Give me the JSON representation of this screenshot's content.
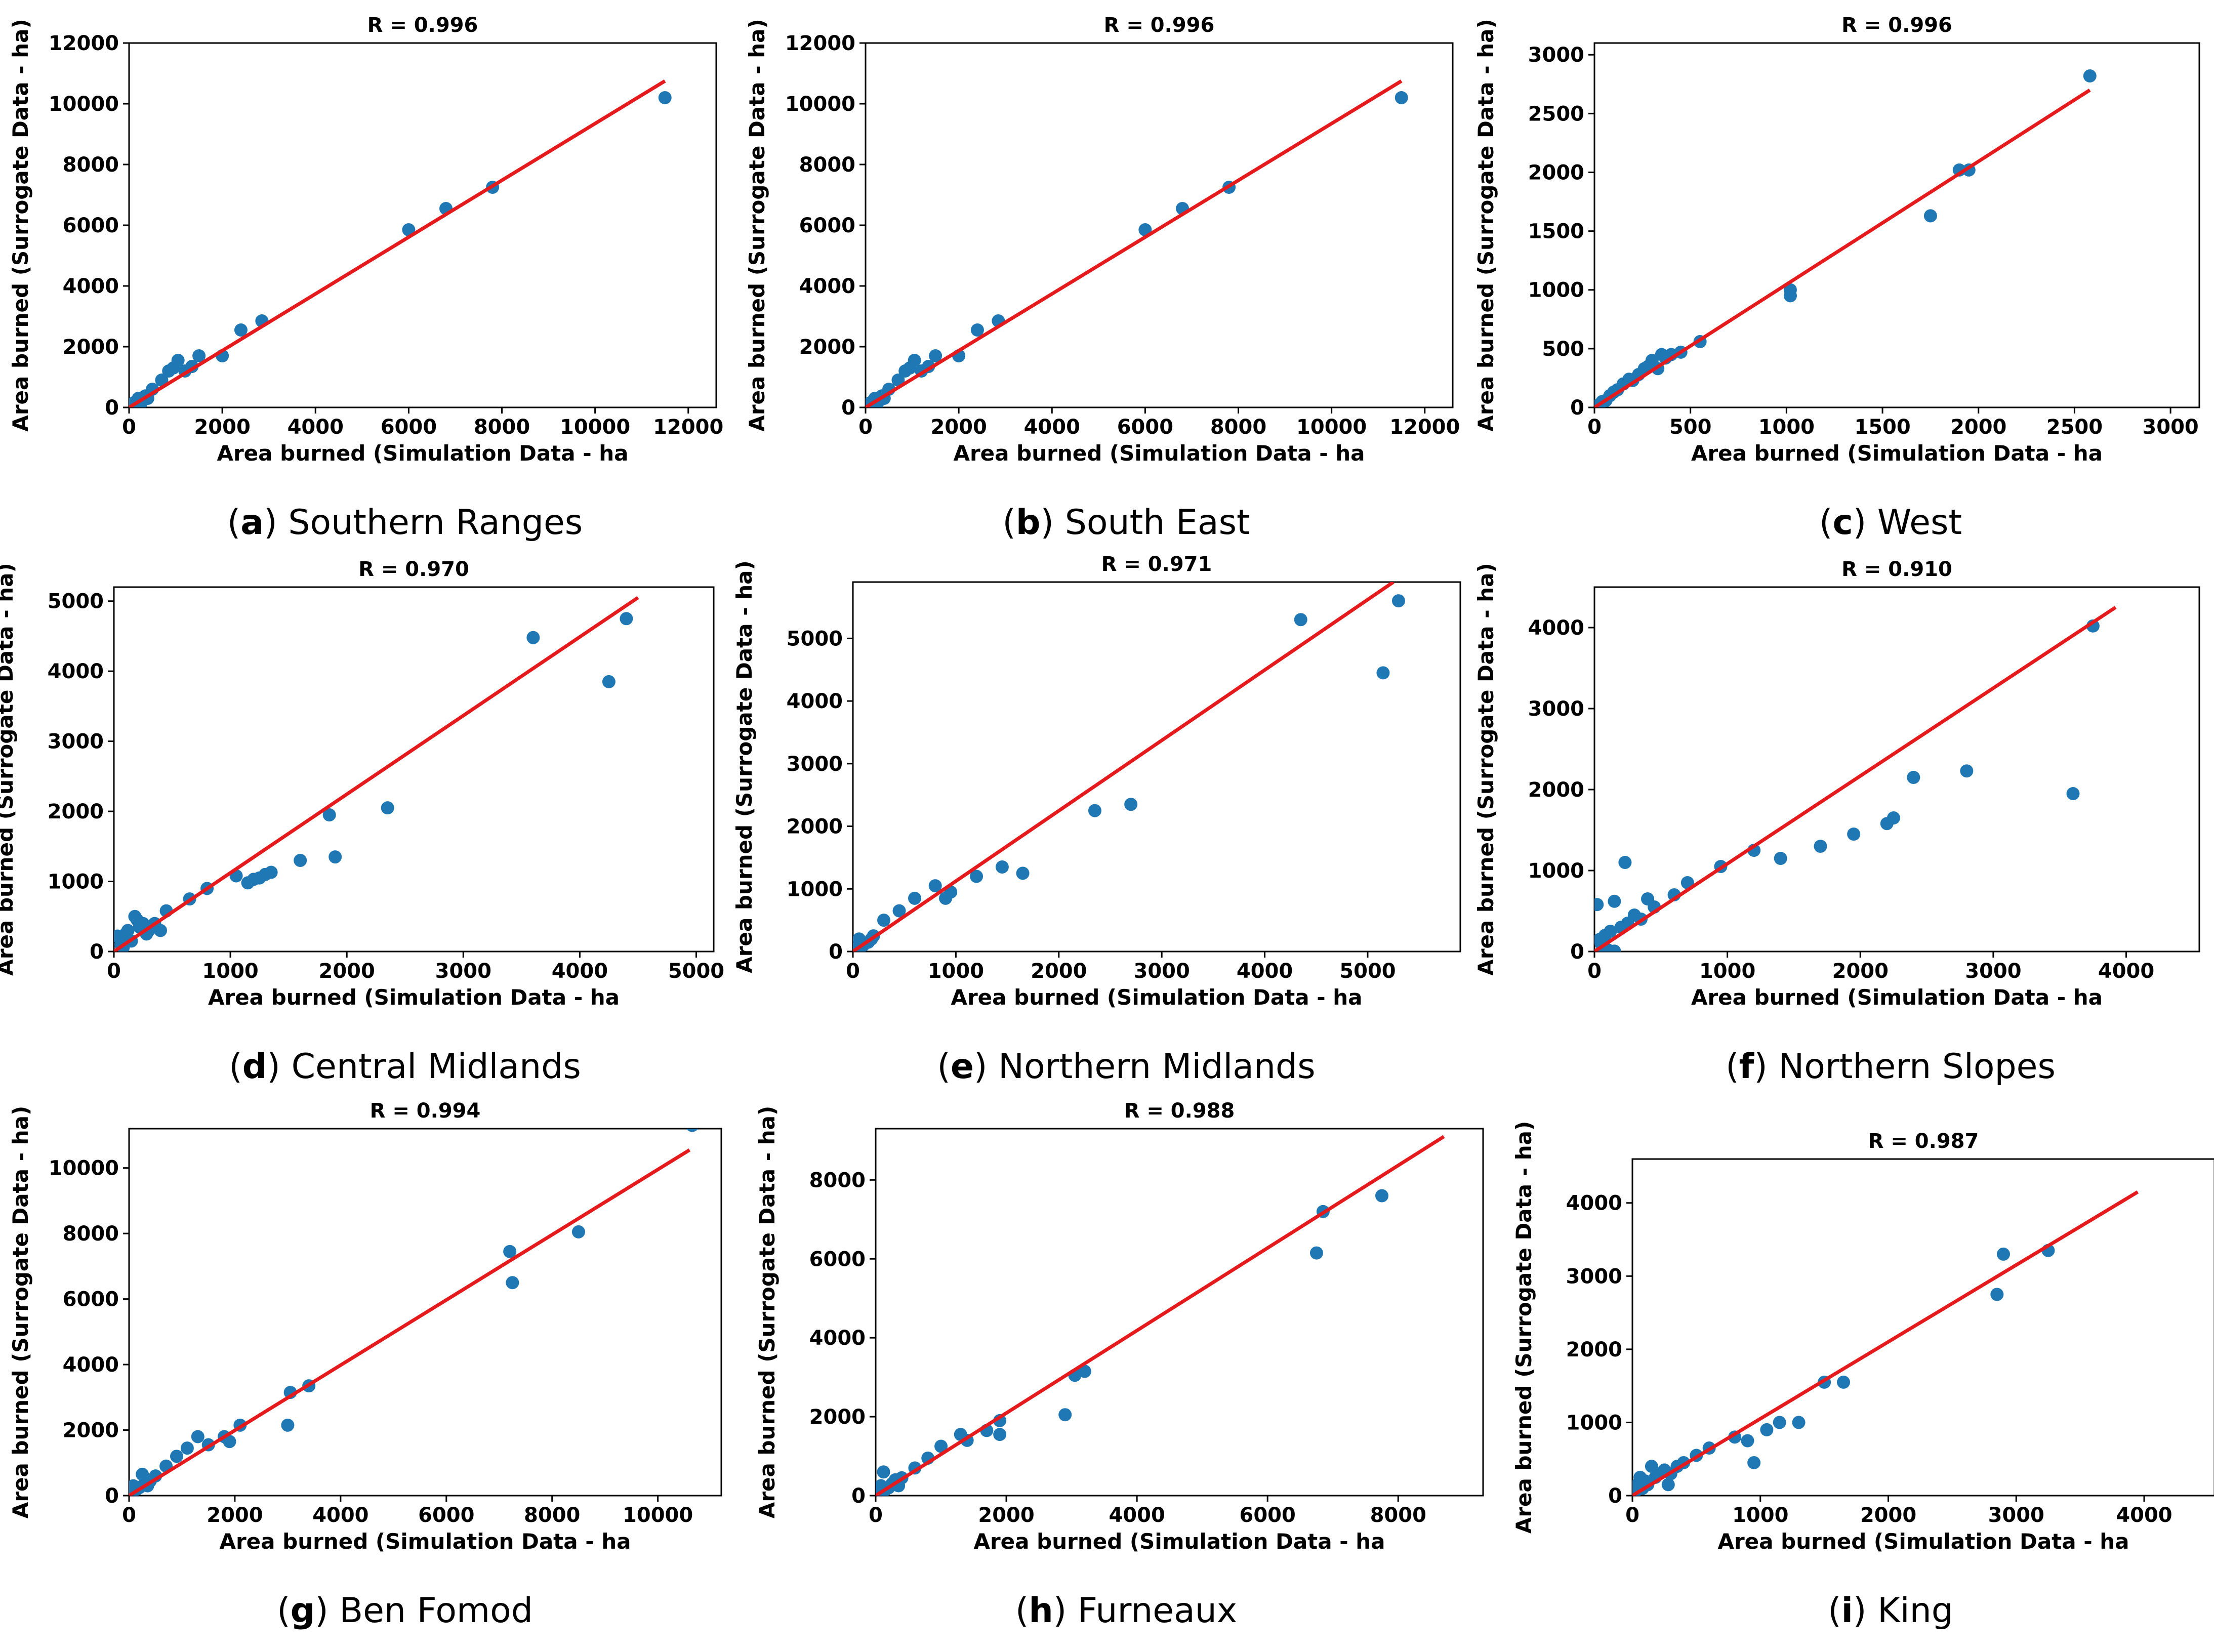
{
  "figure": {
    "point_color": "#1f77b4",
    "line_color": "#e41a1c"
  },
  "chart_data": [
    {
      "panel": "a",
      "label": "Southern Ranges",
      "title": "R = 0.996",
      "type": "scatter",
      "xlabel": "Area burned (Simulation Data - ha",
      "ylabel": "Area burned (Surrogate Data - ha)",
      "xlim": [
        0,
        12600
      ],
      "ylim": [
        0,
        12000
      ],
      "xticks": [
        0,
        2000,
        4000,
        6000,
        8000,
        10000,
        12000
      ],
      "yticks": [
        0,
        2000,
        4000,
        6000,
        8000,
        10000,
        12000
      ],
      "fit_line": [
        [
          0,
          0
        ],
        [
          11500,
          10750
        ]
      ],
      "x": [
        50,
        100,
        150,
        200,
        250,
        300,
        350,
        400,
        500,
        700,
        850,
        950,
        1050,
        1200,
        1350,
        1500,
        2000,
        2400,
        2850,
        6000,
        6800,
        7800,
        11500
      ],
      "y": [
        60,
        150,
        200,
        300,
        120,
        250,
        380,
        300,
        600,
        900,
        1200,
        1300,
        1550,
        1200,
        1350,
        1700,
        1700,
        2550,
        2850,
        5850,
        6550,
        7250,
        10200
      ]
    },
    {
      "panel": "b",
      "label": "South East",
      "title": "R = 0.996",
      "type": "scatter",
      "xlabel": "Area burned (Simulation Data - ha",
      "ylabel": "Area burned (Surrogate Data - ha)",
      "xlim": [
        0,
        12600
      ],
      "ylim": [
        0,
        12000
      ],
      "xticks": [
        0,
        2000,
        4000,
        6000,
        8000,
        10000,
        12000
      ],
      "yticks": [
        0,
        2000,
        4000,
        6000,
        8000,
        10000,
        12000
      ],
      "fit_line": [
        [
          0,
          0
        ],
        [
          11500,
          10750
        ]
      ],
      "x": [
        50,
        100,
        150,
        200,
        250,
        300,
        350,
        400,
        500,
        700,
        850,
        950,
        1050,
        1200,
        1350,
        1500,
        2000,
        2400,
        2850,
        6000,
        6800,
        7800,
        11500
      ],
      "y": [
        60,
        150,
        200,
        300,
        120,
        250,
        380,
        300,
        600,
        900,
        1200,
        1300,
        1550,
        1200,
        1350,
        1700,
        1700,
        2550,
        2850,
        5850,
        6550,
        7250,
        10200
      ]
    },
    {
      "panel": "c",
      "label": "West",
      "title": "R = 0.996",
      "type": "scatter",
      "xlabel": "Area burned (Simulation Data - ha",
      "ylabel": "Area burned (Surrogate Data - ha)",
      "xlim": [
        0,
        3150
      ],
      "ylim": [
        0,
        3100
      ],
      "xticks": [
        0,
        500,
        1000,
        1500,
        2000,
        2500,
        3000
      ],
      "yticks": [
        0,
        500,
        1000,
        1500,
        2000,
        2500,
        3000
      ],
      "fit_line": [
        [
          0,
          0
        ],
        [
          2580,
          2700
        ]
      ],
      "x": [
        20,
        40,
        60,
        80,
        100,
        120,
        150,
        180,
        200,
        230,
        260,
        280,
        300,
        330,
        350,
        370,
        400,
        450,
        550,
        1020,
        1020,
        1750,
        1900,
        1950,
        2580
      ],
      "y": [
        20,
        50,
        60,
        100,
        130,
        150,
        200,
        240,
        230,
        280,
        330,
        350,
        400,
        330,
        450,
        420,
        450,
        470,
        560,
        1000,
        950,
        1630,
        2020,
        2020,
        2820
      ]
    },
    {
      "panel": "d",
      "label": "Central Midlands",
      "title": "R = 0.970",
      "type": "scatter",
      "xlabel": "Area burned (Simulation Data - ha",
      "ylabel": "Area burned (Surrogate Data - ha)",
      "xlim": [
        0,
        5150
      ],
      "ylim": [
        0,
        5200
      ],
      "xticks": [
        0,
        1000,
        2000,
        3000,
        4000,
        5000
      ],
      "yticks": [
        0,
        1000,
        2000,
        3000,
        4000,
        5000
      ],
      "fit_line": [
        [
          0,
          0
        ],
        [
          4500,
          5050
        ]
      ],
      "x": [
        30,
        60,
        80,
        100,
        120,
        150,
        180,
        200,
        220,
        250,
        280,
        300,
        350,
        400,
        450,
        650,
        800,
        1050,
        1150,
        1200,
        1250,
        1300,
        1350,
        1600,
        1850,
        1900,
        2350,
        3600,
        4250,
        4400
      ],
      "y": [
        220,
        100,
        60,
        250,
        300,
        150,
        500,
        450,
        350,
        400,
        250,
        300,
        400,
        300,
        580,
        750,
        900,
        1080,
        980,
        1030,
        1050,
        1100,
        1130,
        1300,
        1950,
        1350,
        2050,
        4480,
        3850,
        4750
      ]
    },
    {
      "panel": "e",
      "label": "Northern Midlands",
      "title": "R = 0.971",
      "type": "scatter",
      "xlabel": "Area burned (Simulation Data - ha",
      "ylabel": "Area burned (Surrogate Data - ha)",
      "xlim": [
        0,
        5900
      ],
      "ylim": [
        0,
        5900
      ],
      "xticks": [
        0,
        1000,
        2000,
        3000,
        4000,
        5000
      ],
      "yticks": [
        0,
        1000,
        2000,
        3000,
        4000,
        5000
      ],
      "fit_line": [
        [
          0,
          0
        ],
        [
          5250,
          5900
        ]
      ],
      "x": [
        30,
        60,
        100,
        150,
        180,
        200,
        300,
        450,
        600,
        800,
        900,
        950,
        1200,
        1450,
        1650,
        2350,
        2700,
        4350,
        5150,
        5300
      ],
      "y": [
        50,
        200,
        100,
        150,
        200,
        250,
        500,
        650,
        850,
        1050,
        850,
        950,
        1200,
        1350,
        1250,
        2250,
        2350,
        5300,
        4450,
        5600
      ]
    },
    {
      "panel": "f",
      "label": "Northern Slopes",
      "title": "R = 0.910",
      "type": "scatter",
      "xlabel": "Area burned (Simulation Data - ha",
      "ylabel": "Area burned (Surrogate Data - ha)",
      "xlim": [
        0,
        4550
      ],
      "ylim": [
        0,
        4500
      ],
      "xticks": [
        0,
        1000,
        2000,
        3000,
        4000
      ],
      "yticks": [
        0,
        1000,
        2000,
        3000,
        4000
      ],
      "fit_line": [
        [
          0,
          0
        ],
        [
          3920,
          4250
        ]
      ],
      "x": [
        20,
        40,
        60,
        80,
        100,
        120,
        150,
        200,
        250,
        300,
        350,
        400,
        450,
        600,
        700,
        950,
        1200,
        1400,
        1700,
        1950,
        2200,
        2250,
        2400,
        2800,
        3600,
        3750,
        50,
        150,
        230
      ],
      "y": [
        580,
        150,
        10,
        200,
        20,
        250,
        5,
        300,
        350,
        450,
        400,
        650,
        550,
        700,
        850,
        1050,
        1250,
        1150,
        1300,
        1450,
        1580,
        1650,
        2150,
        2230,
        1950,
        4020,
        100,
        620,
        1100
      ]
    },
    {
      "panel": "g",
      "label": "Ben Fomod",
      "title": "R = 0.994",
      "type": "scatter",
      "xlabel": "Area burned (Simulation Data - ha",
      "ylabel": "Area burned (Surrogate Data - ha)",
      "xlim": [
        0,
        11200
      ],
      "ylim": [
        0,
        11200
      ],
      "xticks": [
        0,
        2000,
        4000,
        6000,
        8000,
        10000
      ],
      "yticks": [
        0,
        2000,
        4000,
        6000,
        8000,
        10000
      ],
      "fit_line": [
        [
          0,
          0
        ],
        [
          10600,
          10550
        ]
      ],
      "x": [
        30,
        80,
        150,
        200,
        250,
        300,
        350,
        400,
        500,
        700,
        900,
        1100,
        1300,
        1500,
        1800,
        1900,
        2100,
        3000,
        3050,
        3400,
        7200,
        7250,
        8500,
        10650
      ],
      "y": [
        100,
        300,
        200,
        250,
        650,
        400,
        300,
        450,
        600,
        900,
        1200,
        1450,
        1800,
        1550,
        1800,
        1650,
        2150,
        2150,
        3150,
        3350,
        7450,
        6500,
        8050,
        11300
      ]
    },
    {
      "panel": "h",
      "label": "Furneaux",
      "title": "R = 0.988",
      "type": "scatter",
      "xlabel": "Area burned (Simulation Data - ha",
      "ylabel": "Area burned (Surrogate Data - ha)",
      "xlim": [
        0,
        9300
      ],
      "ylim": [
        0,
        9300
      ],
      "xticks": [
        0,
        2000,
        4000,
        6000,
        8000
      ],
      "yticks": [
        0,
        2000,
        4000,
        6000,
        8000
      ],
      "fit_line": [
        [
          0,
          0
        ],
        [
          8700,
          9100
        ]
      ],
      "x": [
        30,
        80,
        120,
        150,
        200,
        250,
        300,
        350,
        400,
        600,
        800,
        1000,
        1300,
        1400,
        1700,
        1900,
        1900,
        2900,
        3050,
        3200,
        6750,
        6850,
        7750
      ],
      "y": [
        100,
        250,
        600,
        150,
        200,
        300,
        400,
        250,
        450,
        700,
        950,
        1250,
        1550,
        1400,
        1650,
        1900,
        1550,
        2050,
        3050,
        3150,
        6150,
        7200,
        7600
      ]
    },
    {
      "panel": "i",
      "label": "King",
      "title": "R = 0.987",
      "type": "scatter",
      "xlabel": "Area burned (Simulation Data - ha",
      "ylabel": "Area burned (Surrogate Data - ha)",
      "xlim": [
        0,
        4550
      ],
      "ylim": [
        0,
        4600
      ],
      "xticks": [
        0,
        1000,
        2000,
        3000,
        4000
      ],
      "yticks": [
        0,
        1000,
        2000,
        3000,
        4000
      ],
      "fit_line": [
        [
          0,
          0
        ],
        [
          3950,
          4150
        ]
      ],
      "x": [
        20,
        40,
        60,
        80,
        100,
        120,
        150,
        180,
        200,
        250,
        280,
        300,
        350,
        400,
        500,
        600,
        800,
        900,
        950,
        1050,
        1150,
        1300,
        1500,
        1650,
        2850,
        2900,
        3250
      ],
      "y": [
        50,
        150,
        250,
        100,
        200,
        150,
        400,
        250,
        300,
        350,
        150,
        300,
        400,
        450,
        550,
        650,
        800,
        750,
        450,
        900,
        1000,
        1000,
        1550,
        1550,
        2750,
        3300,
        3350
      ]
    }
  ]
}
